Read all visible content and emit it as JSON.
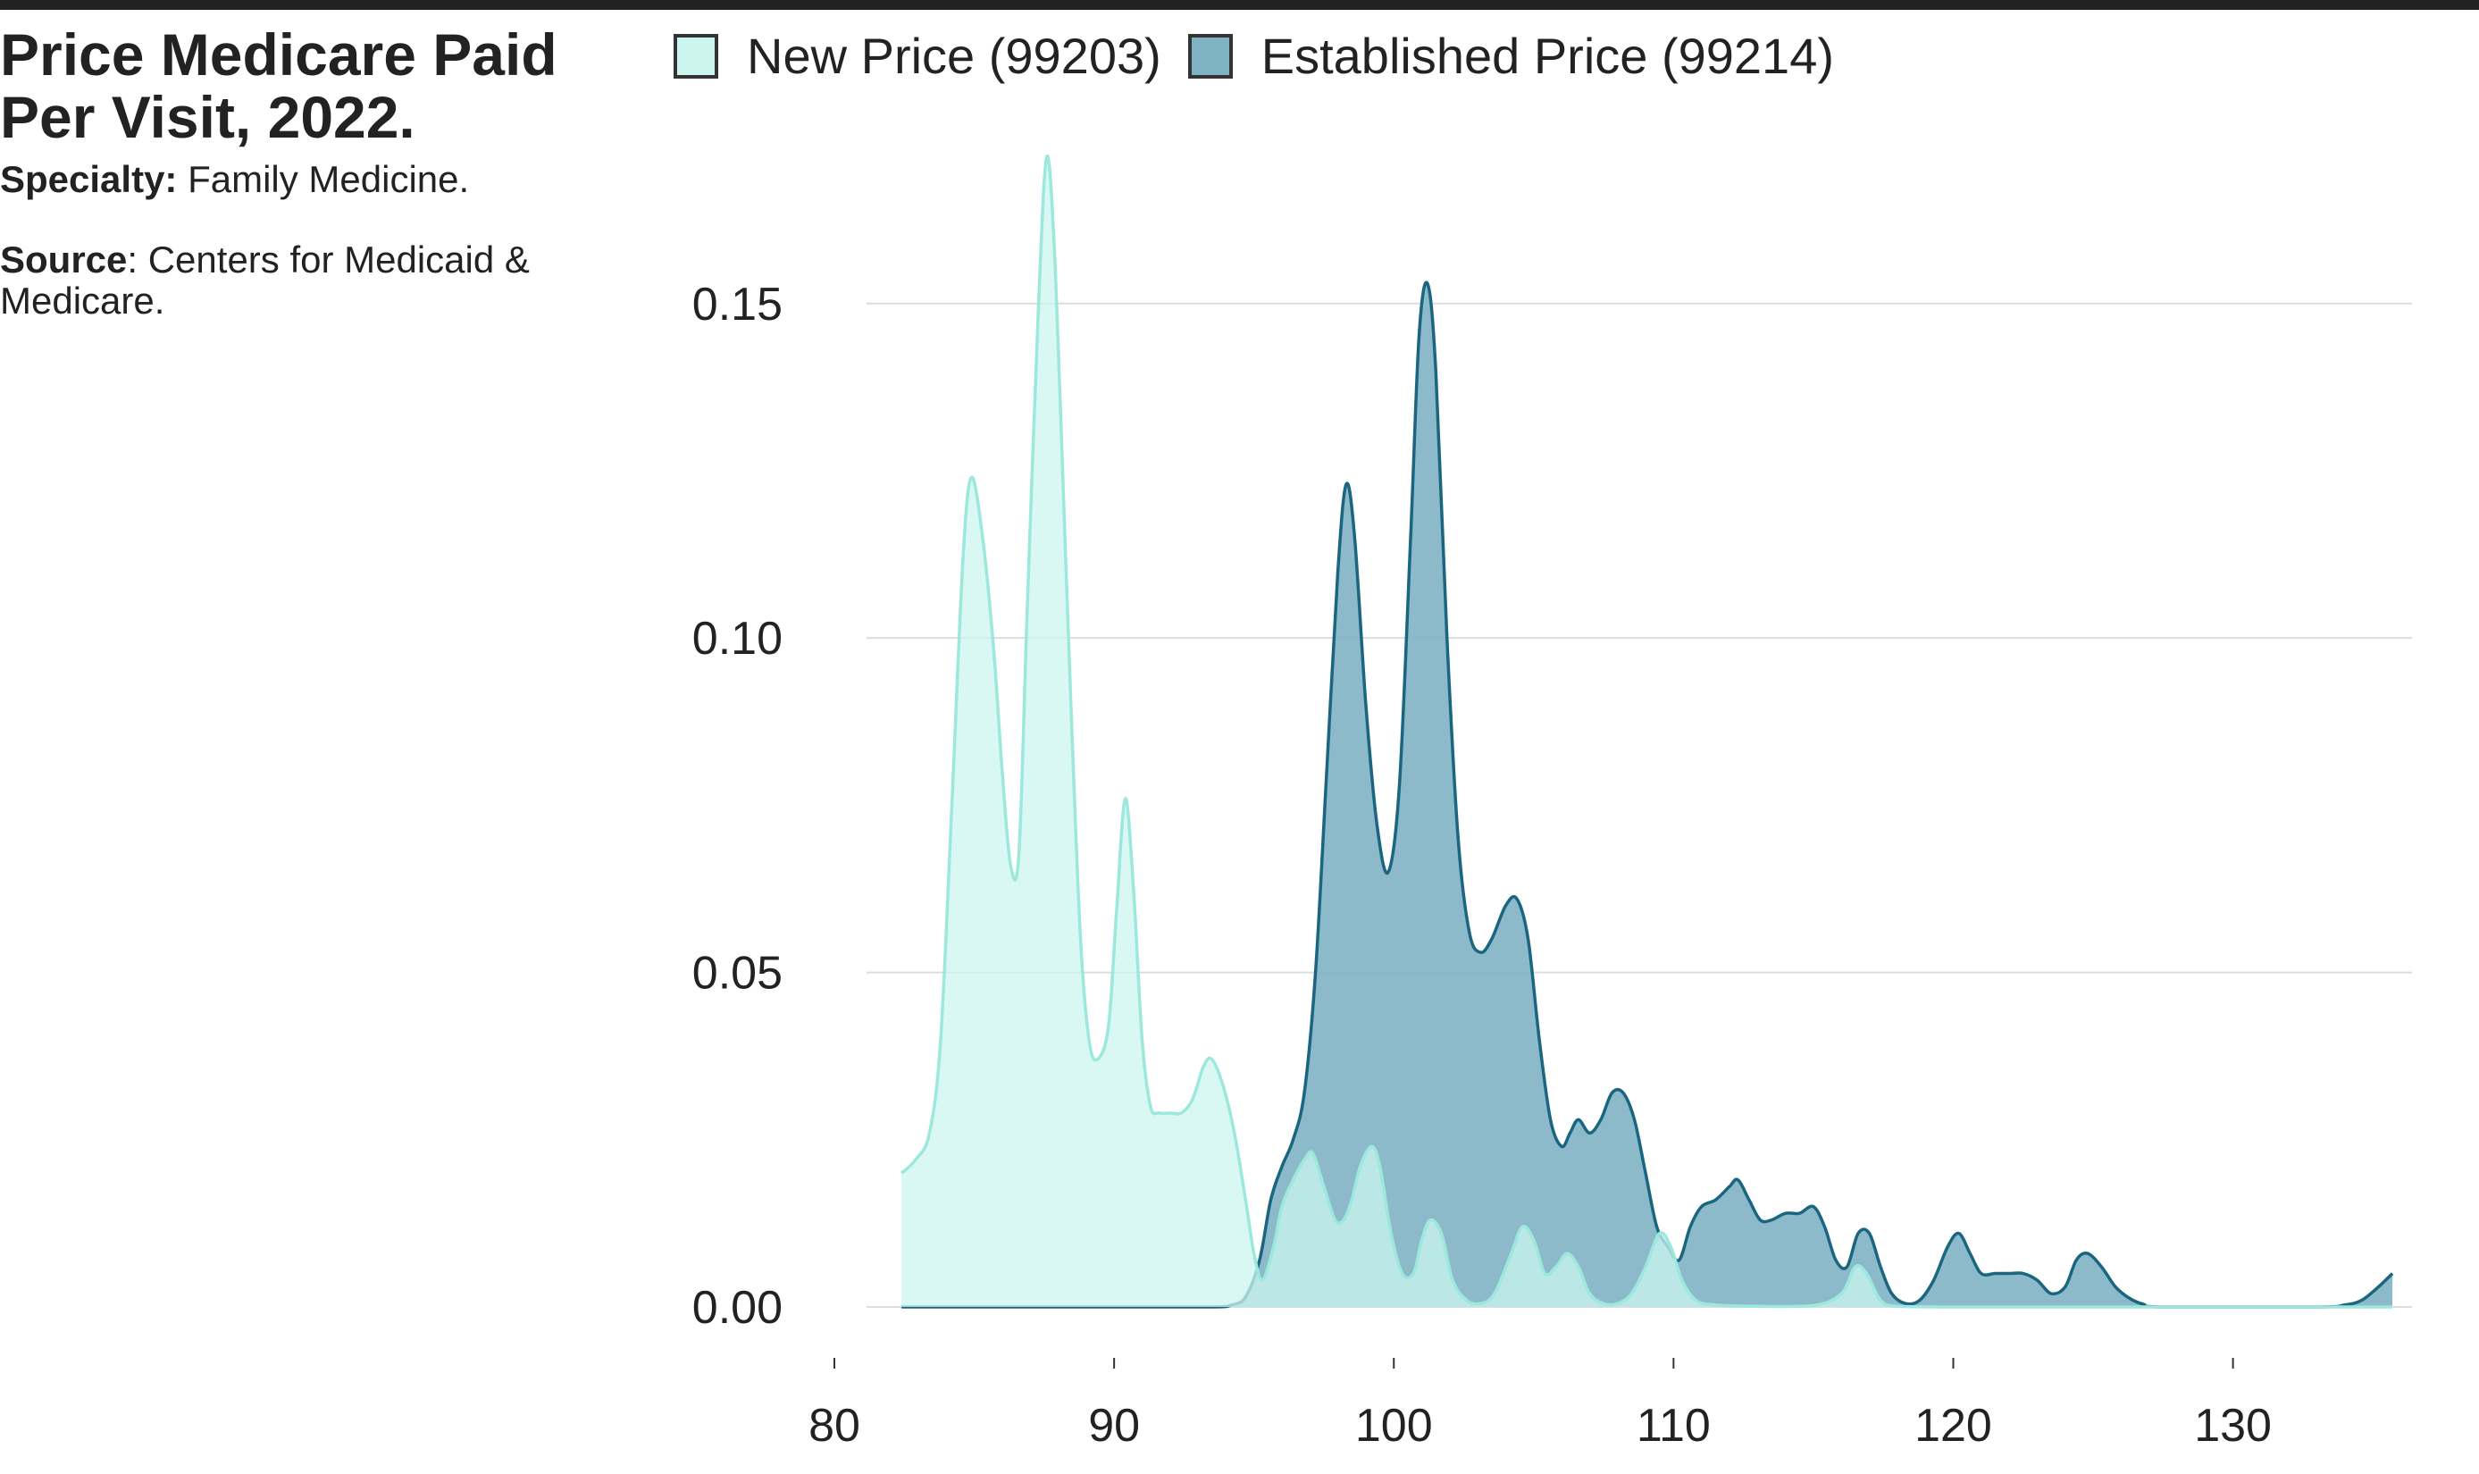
{
  "colors": {
    "background": "#ffffff",
    "text": "#222222",
    "grid": "#dddddd",
    "new_fill": "#ccf5f0",
    "new_line": "#9ce8dd",
    "established_fill": "#7fb3c4",
    "established_line": "#1a6680"
  },
  "header": {
    "title_line1": "Price Medicare Paid",
    "title_line2": "Per Visit, 2022.",
    "specialty_key": "Specialty:",
    "specialty_value": "Family Medicine.",
    "source_key": "Source",
    "source_value": ": Centers for Medicaid &",
    "source_value_2": "Medicare."
  },
  "legend": {
    "items": [
      {
        "label": "New Price (99203)",
        "fill": "#ccf5f0",
        "border": "#333333"
      },
      {
        "label": "Established Price (99214)",
        "fill": "#7fb3c4",
        "border": "#333333"
      }
    ]
  },
  "chart_data": {
    "type": "area",
    "subtype": "density",
    "title": "Price Medicare Paid Per Visit, 2022.",
    "xlabel": "",
    "ylabel": "",
    "xlim": [
      77.7,
      136.4
    ],
    "ylim": [
      0,
      0.17
    ],
    "x_ticks": [
      80,
      90,
      100,
      110,
      120,
      130
    ],
    "y_ticks": [
      0.0,
      0.05,
      0.1,
      0.15
    ],
    "y_tick_labels": [
      "0.00",
      "0.05",
      "0.10",
      "0.15"
    ],
    "grid": "horizontal",
    "legend_position": "top",
    "series": [
      {
        "name": "New Price (99203)",
        "color": "#9ce8dd",
        "fill": "#ccf5f0",
        "points": [
          [
            82.4,
            0.02
          ],
          [
            82.9,
            0.022
          ],
          [
            83.4,
            0.026
          ],
          [
            83.8,
            0.04
          ],
          [
            84.2,
            0.075
          ],
          [
            84.6,
            0.112
          ],
          [
            84.9,
            0.124
          ],
          [
            85.3,
            0.115
          ],
          [
            85.7,
            0.098
          ],
          [
            86.0,
            0.08
          ],
          [
            86.3,
            0.066
          ],
          [
            86.6,
            0.068
          ],
          [
            86.9,
            0.105
          ],
          [
            87.3,
            0.15
          ],
          [
            87.6,
            0.172
          ],
          [
            87.9,
            0.155
          ],
          [
            88.2,
            0.12
          ],
          [
            88.5,
            0.085
          ],
          [
            88.8,
            0.055
          ],
          [
            89.1,
            0.04
          ],
          [
            89.4,
            0.037
          ],
          [
            89.8,
            0.042
          ],
          [
            90.1,
            0.06
          ],
          [
            90.4,
            0.076
          ],
          [
            90.7,
            0.062
          ],
          [
            91.0,
            0.04
          ],
          [
            91.3,
            0.03
          ],
          [
            91.6,
            0.029
          ],
          [
            92.0,
            0.029
          ],
          [
            92.4,
            0.029
          ],
          [
            92.8,
            0.031
          ],
          [
            93.2,
            0.036
          ],
          [
            93.5,
            0.037
          ],
          [
            93.9,
            0.033
          ],
          [
            94.3,
            0.026
          ],
          [
            94.7,
            0.016
          ],
          [
            95.0,
            0.008
          ],
          [
            95.3,
            0.004
          ],
          [
            95.7,
            0.009
          ],
          [
            96.0,
            0.015
          ],
          [
            96.4,
            0.019
          ],
          [
            96.8,
            0.022
          ],
          [
            97.1,
            0.023
          ],
          [
            97.5,
            0.018
          ],
          [
            97.9,
            0.013
          ],
          [
            98.2,
            0.013
          ],
          [
            98.5,
            0.016
          ],
          [
            98.8,
            0.021
          ],
          [
            99.2,
            0.024
          ],
          [
            99.5,
            0.021
          ],
          [
            99.9,
            0.011
          ],
          [
            100.3,
            0.005
          ],
          [
            100.7,
            0.005
          ],
          [
            101.0,
            0.01
          ],
          [
            101.3,
            0.013
          ],
          [
            101.7,
            0.011
          ],
          [
            102.1,
            0.004
          ],
          [
            102.6,
            0.001
          ],
          [
            103.1,
            0.0005
          ],
          [
            103.6,
            0.002
          ],
          [
            104.2,
            0.008
          ],
          [
            104.6,
            0.012
          ],
          [
            105.0,
            0.01
          ],
          [
            105.4,
            0.005
          ],
          [
            105.8,
            0.006
          ],
          [
            106.2,
            0.008
          ],
          [
            106.6,
            0.006
          ],
          [
            107.0,
            0.002
          ],
          [
            107.5,
            0.0005
          ],
          [
            108.0,
            0.0005
          ],
          [
            108.5,
            0.002
          ],
          [
            109.0,
            0.006
          ],
          [
            109.5,
            0.011
          ],
          [
            109.9,
            0.009
          ],
          [
            110.3,
            0.004
          ],
          [
            110.8,
            0.001
          ],
          [
            111.5,
            0.0003
          ],
          [
            113.0,
            0.0001
          ],
          [
            115.0,
            0.0002
          ],
          [
            116.0,
            0.002
          ],
          [
            116.5,
            0.006
          ],
          [
            116.9,
            0.005
          ],
          [
            117.4,
            0.001
          ],
          [
            118.0,
            0.0001
          ],
          [
            120.0,
            0.0
          ],
          [
            125.0,
            0.0
          ],
          [
            130.0,
            0.0
          ],
          [
            135.7,
            0.0
          ]
        ]
      },
      {
        "name": "Established Price (99214)",
        "color": "#1a6680",
        "fill": "#7fb3c4",
        "points": [
          [
            82.4,
            0.0
          ],
          [
            90.0,
            0.0
          ],
          [
            93.5,
            0.0
          ],
          [
            94.2,
            0.0003
          ],
          [
            94.7,
            0.0015
          ],
          [
            95.2,
            0.007
          ],
          [
            95.6,
            0.016
          ],
          [
            96.0,
            0.021
          ],
          [
            96.4,
            0.025
          ],
          [
            96.8,
            0.032
          ],
          [
            97.2,
            0.05
          ],
          [
            97.6,
            0.08
          ],
          [
            98.0,
            0.11
          ],
          [
            98.3,
            0.123
          ],
          [
            98.6,
            0.115
          ],
          [
            99.0,
            0.09
          ],
          [
            99.4,
            0.072
          ],
          [
            99.8,
            0.065
          ],
          [
            100.2,
            0.078
          ],
          [
            100.6,
            0.115
          ],
          [
            100.9,
            0.145
          ],
          [
            101.2,
            0.153
          ],
          [
            101.5,
            0.14
          ],
          [
            101.9,
            0.1
          ],
          [
            102.3,
            0.07
          ],
          [
            102.7,
            0.056
          ],
          [
            103.1,
            0.053
          ],
          [
            103.5,
            0.055
          ],
          [
            104.0,
            0.06
          ],
          [
            104.4,
            0.061
          ],
          [
            104.8,
            0.055
          ],
          [
            105.2,
            0.04
          ],
          [
            105.6,
            0.028
          ],
          [
            106.0,
            0.024
          ],
          [
            106.3,
            0.026
          ],
          [
            106.6,
            0.028
          ],
          [
            107.0,
            0.026
          ],
          [
            107.4,
            0.028
          ],
          [
            107.8,
            0.032
          ],
          [
            108.2,
            0.032
          ],
          [
            108.6,
            0.028
          ],
          [
            109.0,
            0.02
          ],
          [
            109.4,
            0.012
          ],
          [
            109.8,
            0.009
          ],
          [
            110.2,
            0.007
          ],
          [
            110.6,
            0.012
          ],
          [
            111.0,
            0.015
          ],
          [
            111.5,
            0.016
          ],
          [
            112.0,
            0.018
          ],
          [
            112.3,
            0.019
          ],
          [
            112.7,
            0.016
          ],
          [
            113.1,
            0.013
          ],
          [
            113.5,
            0.013
          ],
          [
            114.0,
            0.014
          ],
          [
            114.5,
            0.014
          ],
          [
            115.0,
            0.015
          ],
          [
            115.4,
            0.012
          ],
          [
            115.8,
            0.007
          ],
          [
            116.2,
            0.006
          ],
          [
            116.6,
            0.011
          ],
          [
            117.0,
            0.011
          ],
          [
            117.4,
            0.006
          ],
          [
            117.8,
            0.002
          ],
          [
            118.3,
            0.0005
          ],
          [
            118.8,
            0.001
          ],
          [
            119.3,
            0.004
          ],
          [
            119.8,
            0.009
          ],
          [
            120.2,
            0.011
          ],
          [
            120.6,
            0.008
          ],
          [
            121.0,
            0.005
          ],
          [
            121.5,
            0.005
          ],
          [
            122.0,
            0.005
          ],
          [
            122.5,
            0.005
          ],
          [
            123.0,
            0.004
          ],
          [
            123.5,
            0.002
          ],
          [
            124.0,
            0.003
          ],
          [
            124.4,
            0.007
          ],
          [
            124.8,
            0.008
          ],
          [
            125.3,
            0.006
          ],
          [
            125.8,
            0.003
          ],
          [
            126.3,
            0.0013
          ],
          [
            126.8,
            0.0004
          ],
          [
            127.5,
            0.0
          ],
          [
            133.0,
            0.0
          ],
          [
            134.0,
            0.0003
          ],
          [
            134.6,
            0.001
          ],
          [
            135.2,
            0.003
          ],
          [
            135.7,
            0.005
          ]
        ]
      }
    ]
  }
}
